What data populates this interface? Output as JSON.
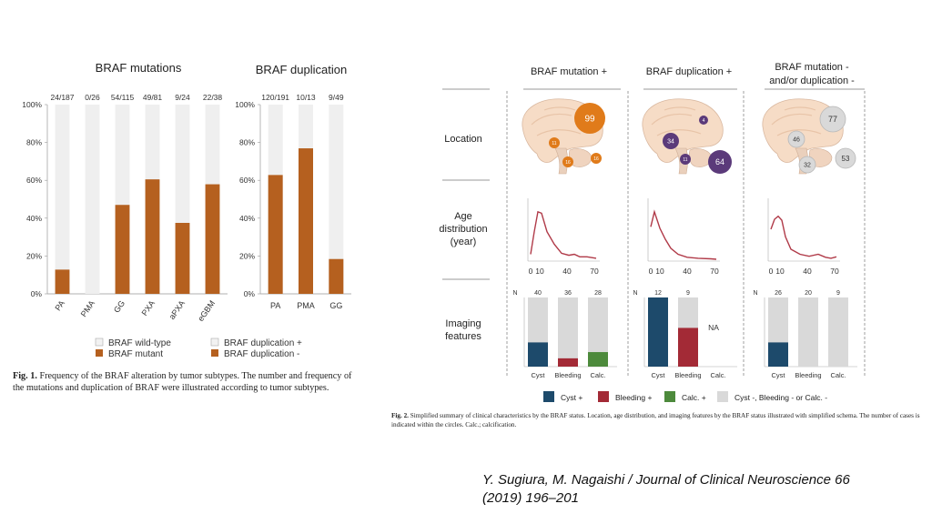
{
  "fig1": {
    "chart_data": [
      {
        "type": "bar",
        "title": "BRAF mutations",
        "categories": [
          "PA",
          "PMA",
          "GG",
          "PXA",
          "aPXA",
          "eGBM"
        ],
        "counts": [
          "24/187",
          "0/26",
          "54/115",
          "49/81",
          "9/24",
          "22/38"
        ],
        "series": [
          {
            "name": "BRAF mutant",
            "values": [
              12.8,
              0,
              47.0,
              60.5,
              37.5,
              57.9
            ]
          }
        ],
        "ylim": [
          0,
          100
        ],
        "yticks": [
          "0%",
          "20%",
          "40%",
          "60%",
          "80%",
          "100%"
        ]
      },
      {
        "type": "bar",
        "title": "BRAF duplication",
        "categories": [
          "PA",
          "PMA",
          "GG"
        ],
        "counts": [
          "120/191",
          "10/13",
          "9/49"
        ],
        "series": [
          {
            "name": "BRAF duplication -",
            "values": [
              62.8,
              76.9,
              18.4
            ]
          }
        ],
        "ylim": [
          0,
          100
        ],
        "yticks": [
          "0%",
          "20%",
          "40%",
          "60%",
          "80%",
          "100%"
        ]
      }
    ],
    "legend": [
      "BRAF wild-type",
      "BRAF mutant",
      "BRAF duplication +",
      "BRAF duplication -"
    ],
    "caption_label": "Fig. 1.",
    "caption_text": "Frequency of the BRAF alteration by tumor subtypes. The number and frequency of the mutations and duplication of BRAF were illustrated according to tumor subtypes.",
    "colors": {
      "bar": "#b5601f",
      "bg_bar": "#efefef",
      "axis": "#999999"
    }
  },
  "fig2": {
    "columns": [
      "BRAF mutation +",
      "BRAF duplication +",
      "BRAF mutation - and/or duplication -"
    ],
    "column_lines": [
      [
        "BRAF mutation +"
      ],
      [
        "BRAF duplication +"
      ],
      [
        "BRAF mutation -",
        "and/or duplication -"
      ]
    ],
    "rows": {
      "location": "Location",
      "age": [
        "Age",
        "distribution",
        "(year)"
      ],
      "imaging": [
        "Imaging",
        "features"
      ]
    },
    "location_circles": [
      [
        {
          "label": "99"
        },
        {
          "label": "11"
        },
        {
          "label": "16"
        },
        {
          "label": "16"
        }
      ],
      [
        {
          "label": "4"
        },
        {
          "label": "34"
        },
        {
          "label": "11"
        },
        {
          "label": "64"
        }
      ],
      [
        {
          "label": "77"
        },
        {
          "label": "46"
        },
        {
          "label": "32"
        },
        {
          "label": "53"
        }
      ]
    ],
    "age_ticks": [
      "0",
      "10",
      "40",
      "70"
    ],
    "imaging": {
      "n_label": "N",
      "categories": [
        "Cyst",
        "Bleeding",
        "Calc."
      ],
      "groups": [
        {
          "n": [
            "40",
            "36",
            "28"
          ],
          "fractions": [
            0.35,
            0.12,
            0.21
          ]
        },
        {
          "n": [
            "12",
            "9",
            ""
          ],
          "fractions": [
            1.0,
            0.56,
            0
          ],
          "na": "NA"
        },
        {
          "n": [
            "26",
            "20",
            "9"
          ],
          "fractions": [
            0.35,
            0,
            0
          ]
        }
      ]
    },
    "legend": [
      "Cyst +",
      "Bleeding +",
      "Calc. +",
      "Cyst -, Bleeding - or Calc. -"
    ],
    "caption_label": "Fig. 2.",
    "caption_text": "Simplified summary of clinical characteristics by the BRAF status. Location, age distribution, and imaging features by the BRAF status illustrated with simplified schema. The number of cases is indicated within the circles. Calc.; calcification.",
    "colors": {
      "orange": "#e07b1a",
      "purple": "#5b3a7a",
      "gray_circle": "#d9d9d9",
      "cyst": "#1d4a6b",
      "bleeding": "#a32a36",
      "calc": "#4d8a3c",
      "neg": "#d9d9d9",
      "curve": "#b03a48"
    }
  },
  "citation": "Y. Sugiura, M. Nagaishi / Journal of Clinical Neuroscience 66 (2019) 196–201"
}
